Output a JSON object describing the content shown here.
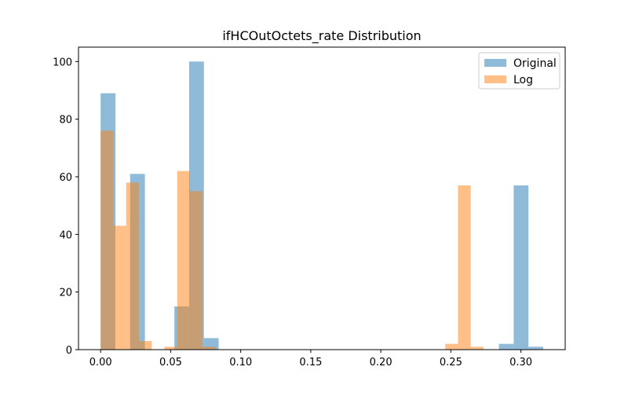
{
  "chart_data": {
    "type": "bar",
    "title": "ifHCOutOctets_rate Distribution",
    "xlabel": "",
    "ylabel": "",
    "xlim": [
      -0.0158,
      0.3316
    ],
    "ylim": [
      0,
      105
    ],
    "grid": false,
    "legend_placement": "top-right",
    "x_ticks": [
      0.0,
      0.05,
      0.1,
      0.15,
      0.2,
      0.25,
      0.3
    ],
    "x_tick_labels": [
      "0.00",
      "0.05",
      "0.10",
      "0.15",
      "0.20",
      "0.25",
      "0.30"
    ],
    "y_ticks": [
      0,
      20,
      40,
      60,
      80,
      100
    ],
    "y_tick_labels": [
      "0",
      "20",
      "40",
      "60",
      "80",
      "100"
    ],
    "series": [
      {
        "name": "Original",
        "color": "#1f77b4",
        "opacity": 0.5,
        "bin_start": 0.0,
        "bin_width": 0.01053,
        "counts": [
          89,
          0,
          61,
          0,
          0,
          15,
          100,
          4,
          0,
          0,
          0,
          0,
          0,
          0,
          0,
          0,
          0,
          0,
          0,
          0,
          0,
          0,
          0,
          0,
          0,
          0,
          0,
          2,
          57,
          1
        ]
      },
      {
        "name": "Log",
        "color": "#ff7f0e",
        "opacity": 0.5,
        "bin_start": 0.0,
        "bin_width": 0.00911,
        "counts": [
          76,
          43,
          58,
          3,
          0,
          1,
          62,
          55,
          1,
          0,
          0,
          0,
          0,
          0,
          0,
          0,
          0,
          0,
          0,
          0,
          0,
          0,
          0,
          0,
          0,
          0,
          0,
          2,
          57,
          1
        ]
      }
    ]
  }
}
